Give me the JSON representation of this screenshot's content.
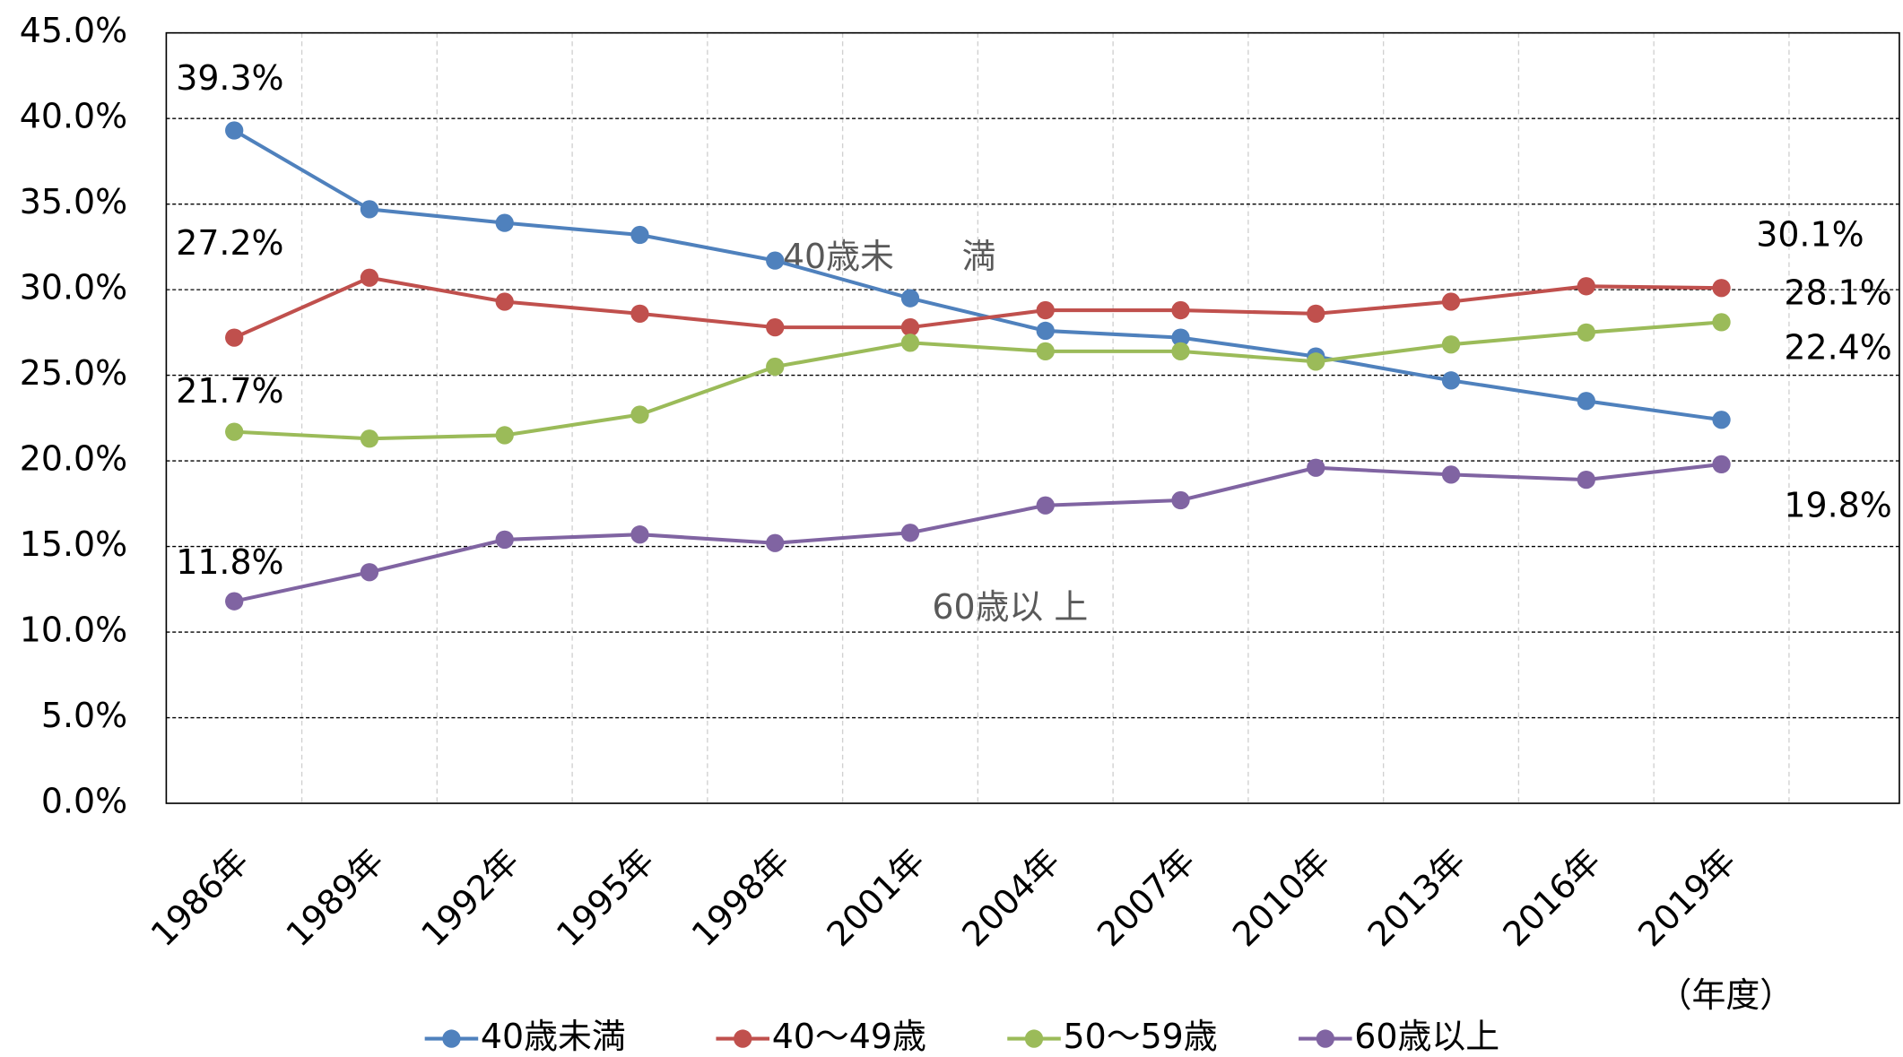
{
  "chart_data": {
    "type": "line",
    "categories": [
      "1986年",
      "1989年",
      "1992年",
      "1995年",
      "1998年",
      "2001年",
      "2004年",
      "2007年",
      "2010年",
      "2013年",
      "2016年",
      "2019年"
    ],
    "x_label": "（年度）",
    "series": [
      {
        "name": "40歳未満",
        "color": "#4f81bd",
        "values": [
          39.3,
          34.7,
          33.9,
          33.2,
          31.7,
          29.5,
          27.6,
          27.2,
          26.1,
          24.7,
          23.5,
          22.4
        ],
        "value_labels": [
          "39.3%",
          null,
          null,
          null,
          null,
          null,
          null,
          null,
          null,
          null,
          null,
          "22.4%"
        ]
      },
      {
        "name": "40～49歳",
        "color": "#c0504d",
        "values": [
          27.2,
          30.7,
          29.3,
          28.6,
          27.8,
          27.8,
          28.8,
          28.8,
          28.6,
          29.3,
          30.2,
          30.1
        ],
        "value_labels": [
          "27.2%",
          null,
          null,
          null,
          null,
          null,
          null,
          null,
          null,
          null,
          null,
          "30.1%"
        ]
      },
      {
        "name": "50～59歳",
        "color": "#9bbb59",
        "values": [
          21.7,
          21.3,
          21.5,
          22.7,
          25.5,
          26.9,
          26.4,
          26.4,
          25.8,
          26.8,
          27.5,
          28.1
        ],
        "value_labels": [
          "21.7%",
          null,
          null,
          null,
          null,
          null,
          null,
          null,
          null,
          null,
          null,
          "28.1%"
        ]
      },
      {
        "name": "60歳以上",
        "color": "#8064a2",
        "values": [
          11.8,
          13.5,
          15.4,
          15.7,
          15.2,
          15.8,
          17.4,
          17.7,
          19.6,
          19.2,
          18.9,
          19.8
        ],
        "value_labels": [
          "11.8%",
          null,
          null,
          null,
          null,
          null,
          null,
          null,
          null,
          null,
          null,
          "19.8%"
        ]
      }
    ],
    "annotations": [
      "40歳未　　満",
      "60歳以 上"
    ],
    "ylim": [
      0,
      45
    ],
    "yticks": [
      {
        "value": 0,
        "label": "0.0%"
      },
      {
        "value": 5,
        "label": "5.0%"
      },
      {
        "value": 10,
        "label": "10.0%"
      },
      {
        "value": 15,
        "label": "15.0%"
      },
      {
        "value": 20,
        "label": "20.0%"
      },
      {
        "value": 25,
        "label": "25.0%"
      },
      {
        "value": 30,
        "label": "30.0%"
      },
      {
        "value": 35,
        "label": "35.0%"
      },
      {
        "value": 40,
        "label": "40.0%"
      },
      {
        "value": 45,
        "label": "45.0%"
      }
    ],
    "grid": true,
    "legend": "bottom"
  }
}
